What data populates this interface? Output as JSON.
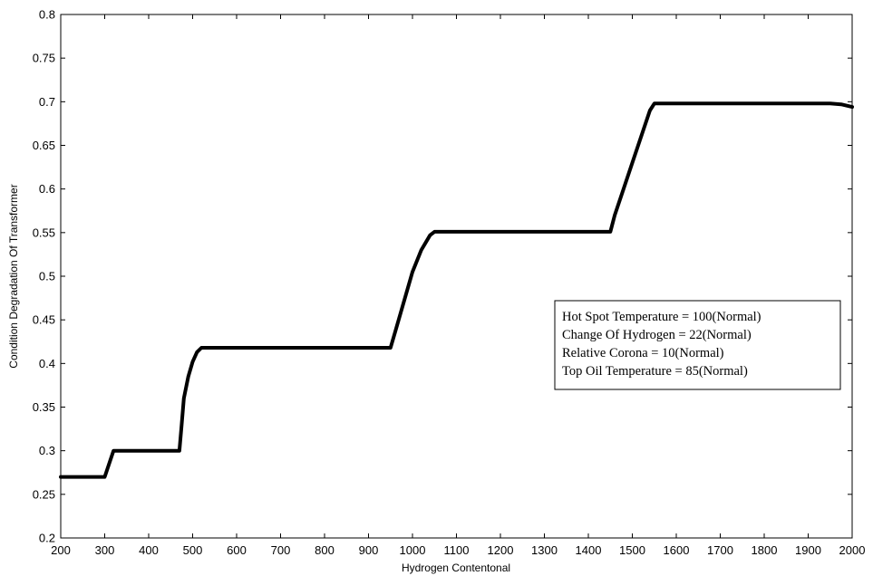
{
  "chart_data": {
    "type": "line",
    "xlabel": "Hydrogen Contentonal",
    "ylabel": "Condition Degradation Of Transformer",
    "xlim": [
      200,
      2000
    ],
    "ylim": [
      0.2,
      0.8
    ],
    "xticks": [
      200,
      300,
      400,
      500,
      600,
      700,
      800,
      900,
      1000,
      1100,
      1200,
      1300,
      1400,
      1500,
      1600,
      1700,
      1800,
      1900,
      2000
    ],
    "yticks": [
      0.2,
      0.25,
      0.3,
      0.35,
      0.4,
      0.45,
      0.5,
      0.55,
      0.6,
      0.65,
      0.7,
      0.75,
      0.8
    ],
    "xtick_labels": [
      "200",
      "300",
      "400",
      "500",
      "600",
      "700",
      "800",
      "900",
      "1000",
      "1100",
      "1200",
      "1300",
      "1400",
      "1500",
      "1600",
      "1700",
      "1800",
      "1900",
      "2000"
    ],
    "ytick_labels": [
      "0.2",
      "0.25",
      "0.3",
      "0.35",
      "0.4",
      "0.45",
      "0.5",
      "0.55",
      "0.6",
      "0.65",
      "0.7",
      "0.75",
      "0.8"
    ],
    "grid": false,
    "series": [
      {
        "color": "#000000",
        "x": [
          200,
          300,
          320,
          470,
          475,
          480,
          490,
          500,
          510,
          520,
          950,
          960,
          980,
          1000,
          1020,
          1040,
          1050,
          1450,
          1460,
          1480,
          1500,
          1520,
          1540,
          1550,
          1950,
          1975,
          2000
        ],
        "y": [
          0.27,
          0.27,
          0.3,
          0.3,
          0.33,
          0.36,
          0.385,
          0.402,
          0.413,
          0.418,
          0.418,
          0.435,
          0.47,
          0.505,
          0.53,
          0.547,
          0.551,
          0.551,
          0.57,
          0.6,
          0.63,
          0.66,
          0.69,
          0.698,
          0.698,
          0.697,
          0.694
        ]
      }
    ],
    "annotation": {
      "lines": [
        "Hot Spot Temperature = 100(Normal)",
        "Change Of  Hydrogen = 22(Normal)",
        "Relative Corona = 10(Normal)",
        "Top Oil Temperature = 85(Normal)"
      ]
    }
  }
}
